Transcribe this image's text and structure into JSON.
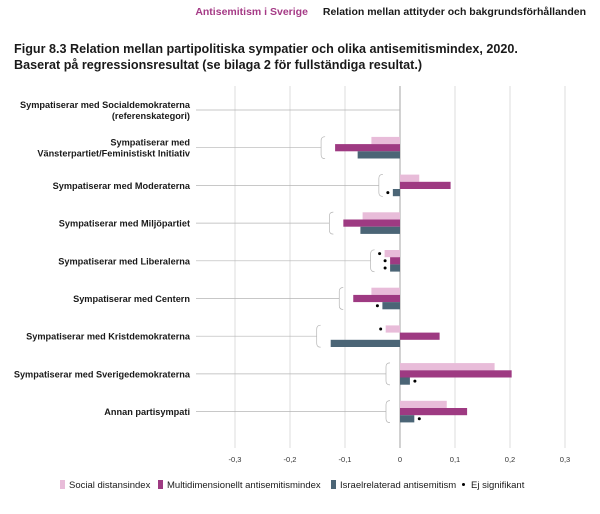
{
  "header": {
    "brand": "Antisemitism i Sverige",
    "section": "Relation mellan attityder och bakgrundsförhållanden"
  },
  "title": {
    "line1": "Figur 8.3 Relation mellan partipolitiska sympatier och olika antisemitismindex, 2020.",
    "line2": "Baserat på regressionsresultat (se bilaga 2 för fullständiga resultat.)"
  },
  "legend": {
    "social": "Social distansindex",
    "multi": "Multidimensionellt antisemitismindex",
    "israel": "Israelrelaterad antisemitism",
    "nonsig": "Ej signifikant"
  },
  "colors": {
    "social": "#e8bcd9",
    "multi": "#9e3a82",
    "israel": "#4b6576",
    "grid": "#cfcfcf",
    "zero": "#9a9a9a"
  },
  "chart_data": {
    "type": "bar",
    "orientation": "horizontal",
    "categories": [
      "Sympatiserar med Socialdemokraterna (referenskategori)",
      "Sympatiserar med Vänsterpartiet/Feministiskt Initiativ",
      "Sympatiserar med Moderaterna",
      "Sympatiserar med Miljöpartiet",
      "Sympatiserar med Liberalerna",
      "Sympatiserar med Centern",
      "Sympatiserar med Kristdemokraterna",
      "Sympatiserar med Sverigedemokraterna",
      "Annan partisympati"
    ],
    "category_lines": [
      [
        "Sympatiserar med Socialdemokraterna",
        "(referenskategori)"
      ],
      [
        "Sympatiserar med",
        "Vänsterpartiet/Feministiskt Initiativ"
      ],
      [
        "Sympatiserar med Moderaterna"
      ],
      [
        "Sympatiserar med Miljöpartiet"
      ],
      [
        "Sympatiserar med Liberalerna"
      ],
      [
        "Sympatiserar med Centern"
      ],
      [
        "Sympatiserar med Kristdemokraterna"
      ],
      [
        "Sympatiserar med Sverigedemokraterna"
      ],
      [
        "Annan partisympati"
      ]
    ],
    "series": [
      {
        "name": "Social distansindex",
        "values": [
          0,
          -0.052,
          0.035,
          -0.068,
          -0.028,
          -0.052,
          -0.026,
          0.172,
          0.085
        ],
        "not_significant": [
          false,
          false,
          false,
          false,
          true,
          false,
          true,
          false,
          false
        ]
      },
      {
        "name": "Multidimensionellt antisemitismindex",
        "values": [
          0,
          -0.118,
          0.092,
          -0.103,
          -0.018,
          -0.085,
          0.072,
          0.203,
          0.122
        ],
        "not_significant": [
          false,
          false,
          false,
          false,
          true,
          false,
          false,
          false,
          false
        ]
      },
      {
        "name": "Israelrelaterad antisemitism",
        "values": [
          0,
          -0.077,
          -0.013,
          -0.072,
          -0.018,
          -0.032,
          -0.126,
          0.018,
          0.026
        ],
        "not_significant": [
          false,
          false,
          true,
          false,
          true,
          true,
          false,
          true,
          true
        ]
      }
    ],
    "xlim": [
      -0.3,
      0.3
    ],
    "xticks": [
      "-0,3",
      "-0,2",
      "-0,1",
      "0",
      "0,1",
      "0,2",
      "0,3"
    ],
    "xtick_values": [
      -0.3,
      -0.2,
      -0.1,
      0,
      0.1,
      0.2,
      0.3
    ],
    "grid": true,
    "legend_position": "bottom"
  }
}
